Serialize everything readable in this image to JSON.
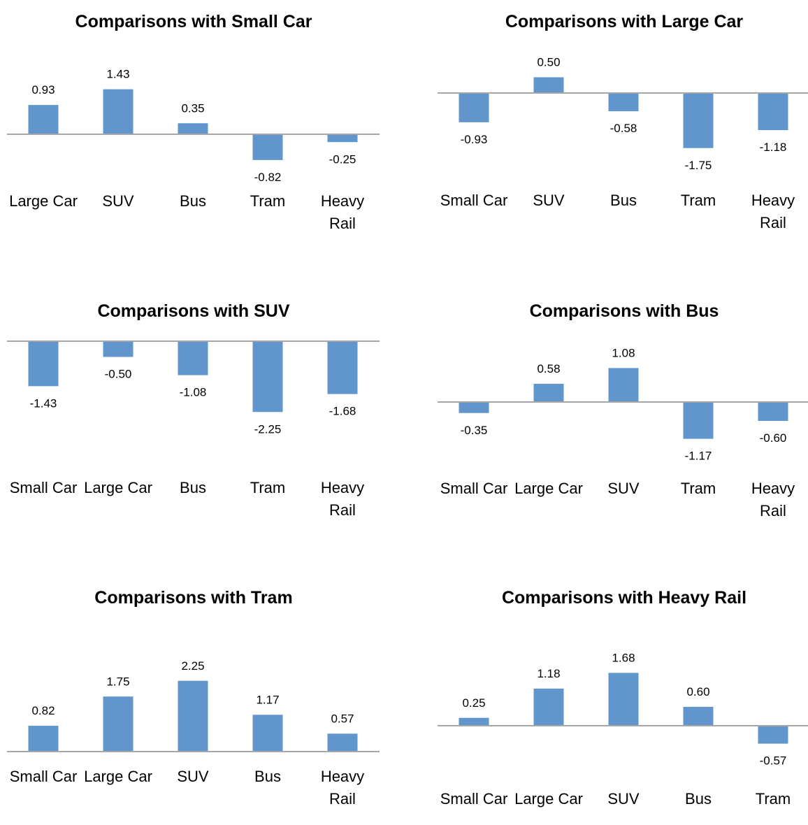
{
  "chart_data": [
    {
      "type": "bar",
      "title": "Comparisons with Small Car",
      "categories": [
        [
          "Large Car"
        ],
        [
          "SUV"
        ],
        [
          "Bus"
        ],
        [
          "Tram"
        ],
        [
          "Heavy",
          "Rail"
        ]
      ],
      "values": [
        0.93,
        1.43,
        0.35,
        -0.82,
        -0.25
      ],
      "value_labels": [
        "0.93",
        "1.43",
        "0.35",
        "-0.82",
        "-0.25"
      ],
      "bar_color": "#6096CC",
      "axis_color": "#A6A6A6",
      "ylim": [
        -2.25,
        2.25
      ],
      "grid": false,
      "legend": "none"
    },
    {
      "type": "bar",
      "title": "Comparisons with Large Car",
      "categories": [
        [
          "Small Car"
        ],
        [
          "SUV"
        ],
        [
          "Bus"
        ],
        [
          "Tram"
        ],
        [
          "Heavy",
          "Rail"
        ]
      ],
      "values": [
        -0.93,
        0.5,
        -0.58,
        -1.75,
        -1.18
      ],
      "value_labels": [
        "-0.93",
        "0.50",
        "-0.58",
        "-1.75",
        "-1.18"
      ],
      "bar_color": "#6096CC",
      "axis_color": "#A6A6A6",
      "ylim": [
        -2.25,
        2.25
      ],
      "grid": false,
      "legend": "none"
    },
    {
      "type": "bar",
      "title": "Comparisons with SUV",
      "categories": [
        [
          "Small Car"
        ],
        [
          "Large Car"
        ],
        [
          "Bus"
        ],
        [
          "Tram"
        ],
        [
          "Heavy",
          "Rail"
        ]
      ],
      "values": [
        -1.43,
        -0.5,
        -1.08,
        -2.25,
        -1.68
      ],
      "value_labels": [
        "-1.43",
        "-0.50",
        "-1.08",
        "-2.25",
        "-1.68"
      ],
      "bar_color": "#6096CC",
      "axis_color": "#A6A6A6",
      "ylim": [
        -2.25,
        2.25
      ],
      "grid": false,
      "legend": "none"
    },
    {
      "type": "bar",
      "title": "Comparisons with Bus",
      "categories": [
        [
          "Small Car"
        ],
        [
          "Large Car"
        ],
        [
          "SUV"
        ],
        [
          "Tram"
        ],
        [
          "Heavy",
          "Rail"
        ]
      ],
      "values": [
        -0.35,
        0.58,
        1.08,
        -1.17,
        -0.6
      ],
      "value_labels": [
        "-0.35",
        "0.58",
        "1.08",
        "-1.17",
        "-0.60"
      ],
      "bar_color": "#6096CC",
      "axis_color": "#A6A6A6",
      "ylim": [
        -2.25,
        2.25
      ],
      "grid": false,
      "legend": "none"
    },
    {
      "type": "bar",
      "title": "Comparisons with Tram",
      "categories": [
        [
          "Small Car"
        ],
        [
          "Large Car"
        ],
        [
          "SUV"
        ],
        [
          "Bus"
        ],
        [
          "Heavy",
          "Rail"
        ]
      ],
      "values": [
        0.82,
        1.75,
        2.25,
        1.17,
        0.57
      ],
      "value_labels": [
        "0.82",
        "1.75",
        "2.25",
        "1.17",
        "0.57"
      ],
      "bar_color": "#6096CC",
      "axis_color": "#A6A6A6",
      "ylim": [
        -2.25,
        2.25
      ],
      "grid": false,
      "legend": "none"
    },
    {
      "type": "bar",
      "title": "Comparisons with Heavy Rail",
      "categories": [
        [
          "Small Car"
        ],
        [
          "Large Car"
        ],
        [
          "SUV"
        ],
        [
          "Bus"
        ],
        [
          "Tram"
        ]
      ],
      "values": [
        0.25,
        1.18,
        1.68,
        0.6,
        -0.57
      ],
      "value_labels": [
        "0.25",
        "1.18",
        "1.68",
        "0.60",
        "-0.57"
      ],
      "bar_color": "#6096CC",
      "axis_color": "#A6A6A6",
      "ylim": [
        -2.25,
        2.25
      ],
      "grid": false,
      "legend": "none"
    }
  ]
}
